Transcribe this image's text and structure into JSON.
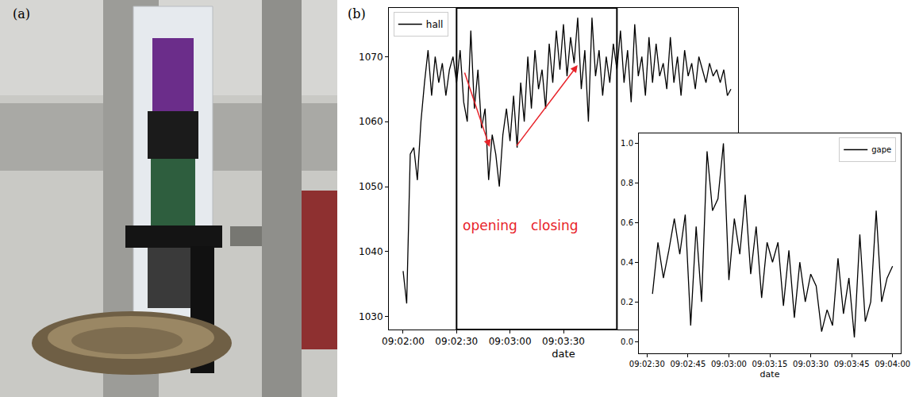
{
  "panels": {
    "a": {
      "label": "(a)"
    },
    "b": {
      "label": "(b)"
    }
  },
  "chart_data": [
    {
      "type": "line",
      "xlabel": "date",
      "x": [
        "09:02:00",
        "09:02:02",
        "09:02:04",
        "09:02:06",
        "09:02:08",
        "09:02:10",
        "09:02:12",
        "09:02:14",
        "09:02:16",
        "09:02:18",
        "09:02:20",
        "09:02:22",
        "09:02:24",
        "09:02:26",
        "09:02:28",
        "09:02:30",
        "09:02:32",
        "09:02:34",
        "09:02:36",
        "09:02:38",
        "09:02:40",
        "09:02:42",
        "09:02:44",
        "09:02:46",
        "09:02:48",
        "09:02:50",
        "09:02:52",
        "09:02:54",
        "09:02:56",
        "09:02:58",
        "09:03:00",
        "09:03:02",
        "09:03:04",
        "09:03:06",
        "09:03:08",
        "09:03:10",
        "09:03:12",
        "09:03:14",
        "09:03:16",
        "09:03:18",
        "09:03:20",
        "09:03:22",
        "09:03:24",
        "09:03:26",
        "09:03:28",
        "09:03:30",
        "09:03:32",
        "09:03:34",
        "09:03:36",
        "09:03:38",
        "09:03:40",
        "09:03:42",
        "09:03:44",
        "09:03:46",
        "09:03:48",
        "09:03:50",
        "09:03:52",
        "09:03:54",
        "09:03:56",
        "09:03:58",
        "09:04:00",
        "09:04:02",
        "09:04:04",
        "09:04:06",
        "09:04:08",
        "09:04:10",
        "09:04:12",
        "09:04:14",
        "09:04:16",
        "09:04:18",
        "09:04:20",
        "09:04:22",
        "09:04:24",
        "09:04:26",
        "09:04:28",
        "09:04:30",
        "09:04:32",
        "09:04:34",
        "09:04:36",
        "09:04:38",
        "09:04:40",
        "09:04:42",
        "09:04:44",
        "09:04:46",
        "09:04:48",
        "09:04:50",
        "09:04:52",
        "09:04:54",
        "09:04:56",
        "09:04:58",
        "09:05:00",
        "09:05:02",
        "09:05:04"
      ],
      "series": [
        {
          "name": "hall",
          "color": "#000000",
          "line_style": "solid",
          "values": [
            1037,
            1032,
            1055,
            1056,
            1051,
            1060,
            1066,
            1071,
            1064,
            1070,
            1066,
            1069,
            1064,
            1068,
            1070,
            1066,
            1071,
            1063,
            1060,
            1074,
            1062,
            1068,
            1059,
            1062,
            1051,
            1058,
            1055,
            1050,
            1058,
            1062,
            1057,
            1064,
            1056,
            1066,
            1060,
            1070,
            1062,
            1071,
            1065,
            1068,
            1062,
            1072,
            1066,
            1074,
            1068,
            1075,
            1067,
            1073,
            1069,
            1076,
            1065,
            1071,
            1060,
            1076,
            1067,
            1071,
            1064,
            1070,
            1066,
            1072,
            1068,
            1074,
            1066,
            1071,
            1063,
            1075,
            1067,
            1070,
            1064,
            1073,
            1066,
            1072,
            1067,
            1069,
            1065,
            1073,
            1066,
            1070,
            1064,
            1071,
            1067,
            1069,
            1065,
            1070,
            1068,
            1066,
            1069,
            1067,
            1068,
            1066,
            1068,
            1064,
            1065
          ]
        }
      ],
      "xlim": [
        "09:01:52",
        "09:05:08"
      ],
      "xticks": [
        "09:02:00",
        "09:02:30",
        "09:03:00",
        "09:03:30"
      ],
      "ylim": [
        1028,
        1077.5
      ],
      "yticks": [
        1030,
        1040,
        1050,
        1060,
        1070
      ],
      "grid": false,
      "legend": "upper left",
      "annotations": [
        {
          "text": "opening",
          "x": "09:02:49",
          "y": 1044,
          "color": "#e8232a"
        },
        {
          "text": "closing",
          "x": "09:03:25",
          "y": 1044,
          "color": "#e8232a"
        }
      ]
    },
    {
      "type": "line",
      "xlabel": "date",
      "x": [
        "09:02:32",
        "09:02:34",
        "09:02:36",
        "09:02:38",
        "09:02:40",
        "09:02:42",
        "09:02:44",
        "09:02:46",
        "09:02:48",
        "09:02:50",
        "09:02:52",
        "09:02:54",
        "09:02:56",
        "09:02:58",
        "09:03:00",
        "09:03:02",
        "09:03:04",
        "09:03:06",
        "09:03:08",
        "09:03:10",
        "09:03:12",
        "09:03:14",
        "09:03:16",
        "09:03:18",
        "09:03:20",
        "09:03:22",
        "09:03:24",
        "09:03:26",
        "09:03:28",
        "09:03:30",
        "09:03:32",
        "09:03:34",
        "09:03:36",
        "09:03:38",
        "09:03:40",
        "09:03:42",
        "09:03:44",
        "09:03:46",
        "09:03:48",
        "09:03:50",
        "09:03:52",
        "09:03:54",
        "09:03:56",
        "09:03:58",
        "09:04:00"
      ],
      "series": [
        {
          "name": "gape",
          "color": "#000000",
          "line_style": "solid",
          "values": [
            0.24,
            0.5,
            0.32,
            0.46,
            0.62,
            0.44,
            0.64,
            0.08,
            0.58,
            0.2,
            0.96,
            0.66,
            0.72,
            1.0,
            0.31,
            0.62,
            0.44,
            0.74,
            0.34,
            0.58,
            0.22,
            0.5,
            0.4,
            0.5,
            0.18,
            0.46,
            0.12,
            0.4,
            0.2,
            0.34,
            0.28,
            0.05,
            0.16,
            0.08,
            0.42,
            0.14,
            0.32,
            0.02,
            0.54,
            0.1,
            0.2,
            0.66,
            0.2,
            0.32,
            0.38
          ]
        }
      ],
      "xlim": [
        "09:02:27",
        "09:04:03"
      ],
      "xticks": [
        "09:02:30",
        "09:02:45",
        "09:03:00",
        "09:03:15",
        "09:03:30",
        "09:03:45",
        "09:04:00"
      ],
      "ylim": [
        -0.06,
        1.05
      ],
      "yticks": [
        {
          "value": 0,
          "label": "0.0"
        },
        {
          "value": 0.2,
          "label": "0.2"
        },
        {
          "value": 0.4,
          "label": "0.4"
        },
        {
          "value": 0.6,
          "label": "0.6"
        },
        {
          "value": 0.8,
          "label": "0.8"
        },
        {
          "value": 1,
          "label": "1.0"
        }
      ],
      "grid": false,
      "legend": "upper right"
    }
  ]
}
